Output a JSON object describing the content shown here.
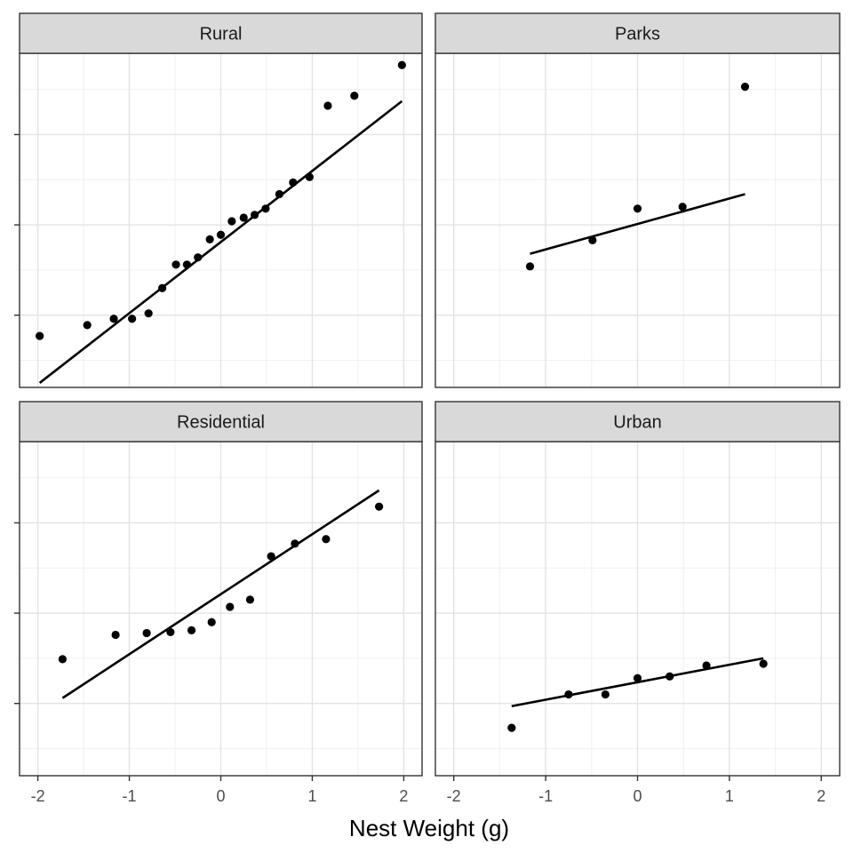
{
  "figure": {
    "xlabel": "Nest Weight (g)"
  },
  "chart_data": {
    "type": "scatter",
    "xlabel": "Nest Weight (g)",
    "ylabel": "",
    "facets_layout": "2x2",
    "xlim": [
      -2.2,
      2.2
    ],
    "ylim": [
      -1.8,
      1.9
    ],
    "x_ticks": [
      -2,
      -1,
      0,
      1,
      2
    ],
    "x_tick_labels": [
      "-2",
      "-1",
      "0",
      "1",
      "2"
    ],
    "y_ticks": [
      -1,
      0,
      1
    ],
    "y_tick_labels": [
      "",
      "",
      ""
    ],
    "grid": true,
    "panels": [
      {
        "name": "Rural",
        "points": [
          {
            "x": -1.98,
            "y": -1.23
          },
          {
            "x": -1.46,
            "y": -1.11
          },
          {
            "x": -1.17,
            "y": -1.04
          },
          {
            "x": -0.97,
            "y": -1.04
          },
          {
            "x": -0.79,
            "y": -0.98
          },
          {
            "x": -0.64,
            "y": -0.7
          },
          {
            "x": -0.49,
            "y": -0.44
          },
          {
            "x": -0.37,
            "y": -0.44
          },
          {
            "x": -0.25,
            "y": -0.36
          },
          {
            "x": -0.12,
            "y": -0.16
          },
          {
            "x": 0.0,
            "y": -0.11
          },
          {
            "x": 0.12,
            "y": 0.04
          },
          {
            "x": 0.25,
            "y": 0.08
          },
          {
            "x": 0.37,
            "y": 0.11
          },
          {
            "x": 0.49,
            "y": 0.18
          },
          {
            "x": 0.64,
            "y": 0.34
          },
          {
            "x": 0.79,
            "y": 0.47
          },
          {
            "x": 0.97,
            "y": 0.53
          },
          {
            "x": 1.17,
            "y": 1.32
          },
          {
            "x": 1.46,
            "y": 1.43
          },
          {
            "x": 1.98,
            "y": 1.77
          }
        ],
        "fit_line": {
          "x": [
            -1.98,
            1.98
          ],
          "y": [
            -1.75,
            1.37
          ]
        }
      },
      {
        "name": "Parks",
        "points": [
          {
            "x": -1.17,
            "y": -0.46
          },
          {
            "x": -0.49,
            "y": -0.17
          },
          {
            "x": 0.0,
            "y": 0.18
          },
          {
            "x": 0.49,
            "y": 0.2
          },
          {
            "x": 1.17,
            "y": 1.53
          }
        ],
        "fit_line": {
          "x": [
            -1.17,
            1.17
          ],
          "y": [
            -0.32,
            0.34
          ]
        }
      },
      {
        "name": "Residential",
        "points": [
          {
            "x": -1.73,
            "y": -0.51
          },
          {
            "x": -1.15,
            "y": -0.24
          },
          {
            "x": -0.81,
            "y": -0.22
          },
          {
            "x": -0.55,
            "y": -0.21
          },
          {
            "x": -0.32,
            "y": -0.19
          },
          {
            "x": -0.1,
            "y": -0.1
          },
          {
            "x": 0.1,
            "y": 0.07
          },
          {
            "x": 0.32,
            "y": 0.15
          },
          {
            "x": 0.55,
            "y": 0.63
          },
          {
            "x": 0.81,
            "y": 0.77
          },
          {
            "x": 1.15,
            "y": 0.82
          },
          {
            "x": 1.73,
            "y": 1.18
          }
        ],
        "fit_line": {
          "x": [
            -1.73,
            1.73
          ],
          "y": [
            -0.94,
            1.36
          ]
        }
      },
      {
        "name": "Urban",
        "points": [
          {
            "x": -1.37,
            "y": -1.27
          },
          {
            "x": -0.75,
            "y": -0.9
          },
          {
            "x": -0.35,
            "y": -0.9
          },
          {
            "x": 0.0,
            "y": -0.72
          },
          {
            "x": 0.35,
            "y": -0.7
          },
          {
            "x": 0.75,
            "y": -0.58
          },
          {
            "x": 1.37,
            "y": -0.56
          }
        ],
        "fit_line": {
          "x": [
            -1.37,
            1.37
          ],
          "y": [
            -1.03,
            -0.5
          ]
        }
      }
    ]
  }
}
